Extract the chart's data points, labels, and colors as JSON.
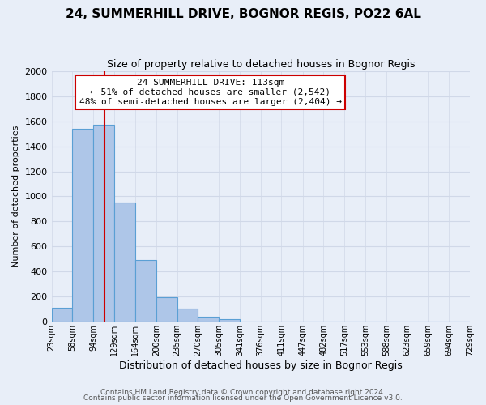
{
  "title": "24, SUMMERHILL DRIVE, BOGNOR REGIS, PO22 6AL",
  "subtitle": "Size of property relative to detached houses in Bognor Regis",
  "xlabel": "Distribution of detached houses by size in Bognor Regis",
  "ylabel": "Number of detached properties",
  "bar_color": "#aec6e8",
  "bar_edge_color": "#5a9fd4",
  "background_color": "#e8eef8",
  "grid_color": "#d0d8e8",
  "vline_x": 113,
  "vline_color": "#cc0000",
  "bin_edges": [
    23,
    58,
    94,
    129,
    164,
    200,
    235,
    270,
    305,
    341,
    376,
    411,
    447,
    482,
    517,
    553,
    588,
    623,
    659,
    694,
    729
  ],
  "bar_heights": [
    110,
    1540,
    1570,
    950,
    490,
    190,
    100,
    35,
    20,
    0,
    0,
    0,
    0,
    0,
    0,
    0,
    0,
    0,
    0,
    0
  ],
  "ylim": [
    0,
    2000
  ],
  "yticks": [
    0,
    200,
    400,
    600,
    800,
    1000,
    1200,
    1400,
    1600,
    1800,
    2000
  ],
  "annotation_line1": "24 SUMMERHILL DRIVE: 113sqm",
  "annotation_line2": "← 51% of detached houses are smaller (2,542)",
  "annotation_line3": "48% of semi-detached houses are larger (2,404) →",
  "annotation_box_color": "#ffffff",
  "annotation_box_edge": "#cc0000",
  "footer_line1": "Contains HM Land Registry data © Crown copyright and database right 2024.",
  "footer_line2": "Contains public sector information licensed under the Open Government Licence v3.0."
}
